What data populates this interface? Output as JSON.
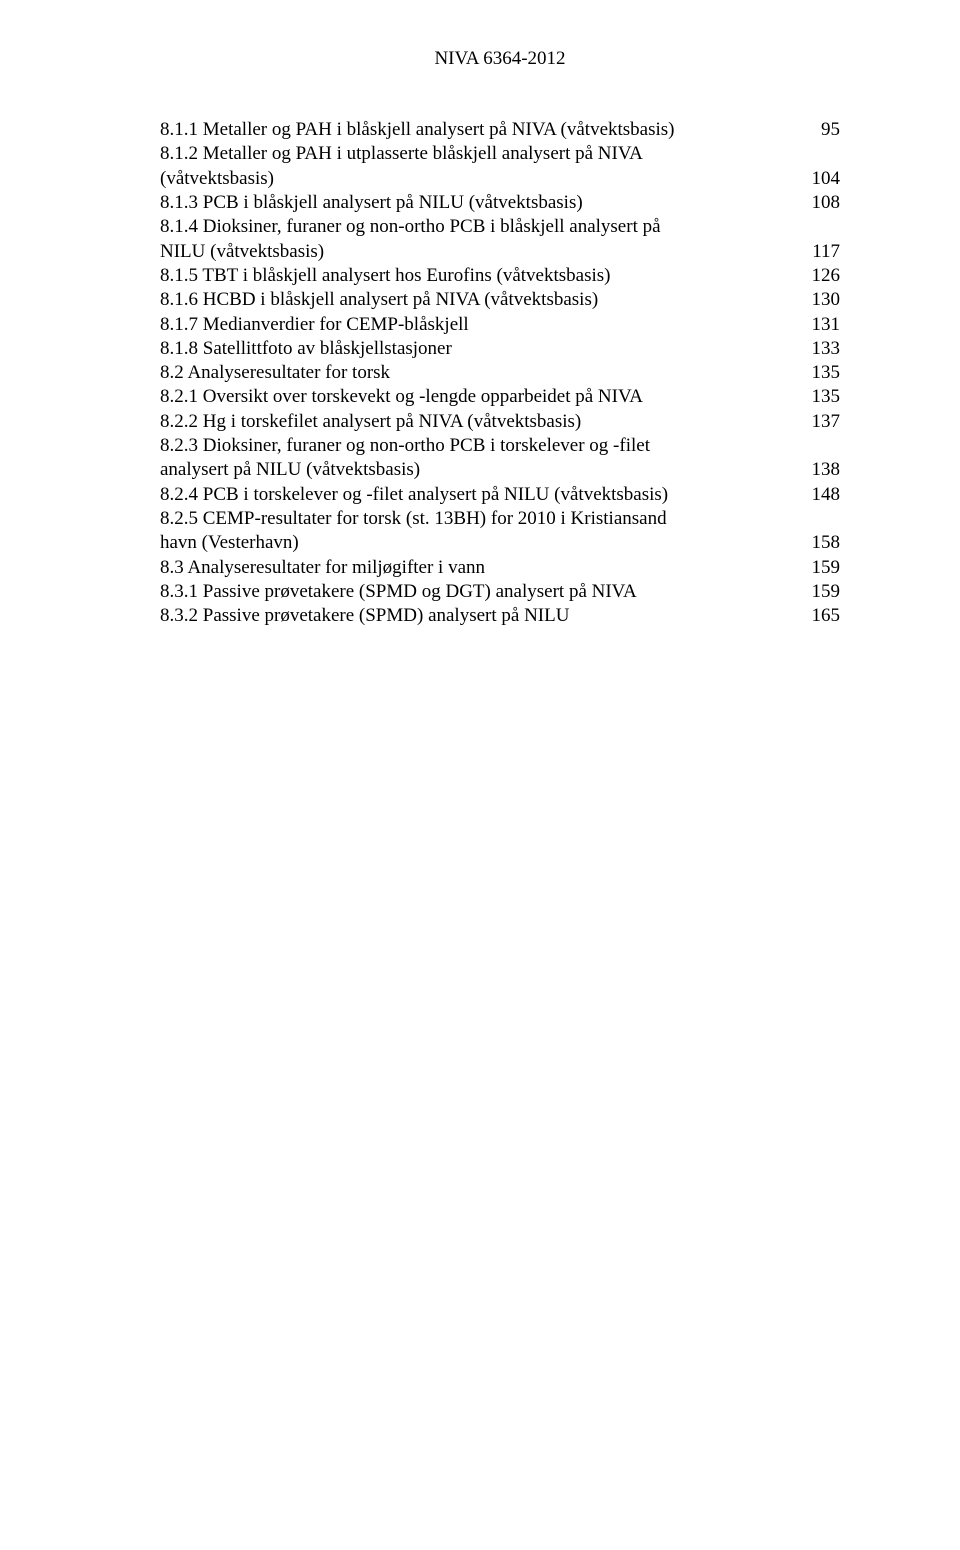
{
  "header": "NIVA 6364-2012",
  "font_family": "Times New Roman",
  "font_size_pt": 14,
  "text_color": "#000000",
  "background_color": "#ffffff",
  "entries": [
    {
      "label": "8.1.1 Metaller og PAH i blåskjell analysert på NIVA (våtvektsbasis)",
      "page": "95",
      "wrap": null
    },
    {
      "label": "8.1.2 Metaller og PAH i utplasserte blåskjell analysert på NIVA",
      "page": "",
      "wrap": null
    },
    {
      "label": "(våtvektsbasis)",
      "page": "104",
      "wrap": null
    },
    {
      "label": "8.1.3 PCB i blåskjell analysert på NILU (våtvektsbasis)",
      "page": "108",
      "wrap": null
    },
    {
      "label": "8.1.4 Dioksiner, furaner og non-ortho PCB i blåskjell analysert på",
      "page": "",
      "wrap": null
    },
    {
      "label": "NILU (våtvektsbasis)",
      "page": "117",
      "wrap": null
    },
    {
      "label": "8.1.5 TBT i blåskjell analysert hos Eurofins (våtvektsbasis)",
      "page": "126",
      "wrap": null
    },
    {
      "label": "8.1.6 HCBD i blåskjell analysert på NIVA (våtvektsbasis)",
      "page": "130",
      "wrap": null
    },
    {
      "label": "8.1.7 Medianverdier for CEMP-blåskjell",
      "page": "131",
      "wrap": null
    },
    {
      "label": "8.1.8 Satellittfoto av blåskjellstasjoner",
      "page": "133",
      "wrap": null
    },
    {
      "label": "8.2 Analyseresultater for torsk",
      "page": "135",
      "wrap": null
    },
    {
      "label": "8.2.1 Oversikt over torskevekt og -lengde opparbeidet på NIVA",
      "page": "135",
      "wrap": null
    },
    {
      "label": "8.2.2 Hg i torskefilet analysert på NIVA (våtvektsbasis)",
      "page": "137",
      "wrap": null
    },
    {
      "label": "8.2.3 Dioksiner, furaner og non-ortho PCB i torskelever og -filet",
      "page": "",
      "wrap": null
    },
    {
      "label": "analysert på NILU (våtvektsbasis)",
      "page": "138",
      "wrap": null
    },
    {
      "label": "8.2.4 PCB i torskelever og -filet analysert på NILU (våtvektsbasis)",
      "page": "148",
      "wrap": null
    },
    {
      "label": "8.2.5 CEMP-resultater for torsk (st. 13BH) for 2010 i Kristiansand",
      "page": "",
      "wrap": null
    },
    {
      "label": "havn (Vesterhavn)",
      "page": "158",
      "wrap": null
    },
    {
      "label": "8.3 Analyseresultater for miljøgifter i vann",
      "page": "159",
      "wrap": null
    },
    {
      "label": "8.3.1 Passive prøvetakere (SPMD og DGT) analysert på NIVA",
      "page": "159",
      "wrap": null
    },
    {
      "label": "8.3.2 Passive prøvetakere (SPMD) analysert på NILU",
      "page": "165",
      "wrap": null
    }
  ]
}
